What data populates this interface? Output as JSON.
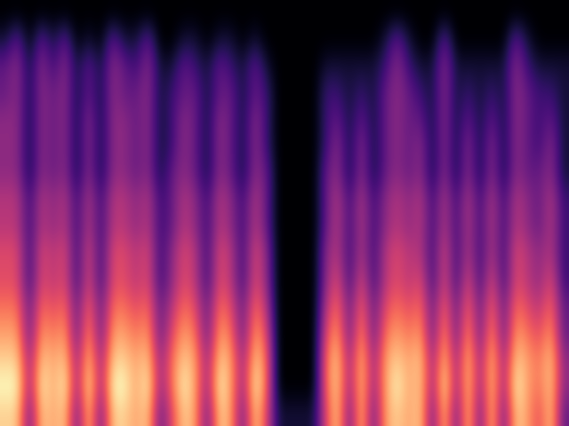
{
  "chart_data": {
    "type": "heatmap",
    "color": "magma",
    "tick_labels": false,
    "cells": [
      [
        0,
        0,
        0,
        0,
        0,
        0,
        0,
        0,
        0,
        0,
        0,
        0,
        0,
        0,
        0,
        0,
        0,
        0,
        0,
        0,
        0,
        0,
        0,
        0,
        0,
        0,
        0,
        0,
        0,
        0,
        0,
        0,
        0,
        0,
        0,
        0,
        0,
        0,
        0,
        0,
        0,
        0,
        0,
        0,
        0,
        0,
        0,
        0
      ],
      [
        1,
        3,
        0,
        3,
        1,
        3,
        0,
        1,
        0,
        3,
        1,
        1,
        3,
        0,
        0,
        1,
        1,
        0,
        1,
        1,
        0,
        1,
        0,
        0,
        0,
        0,
        0,
        0,
        0,
        0,
        0,
        0,
        1,
        3,
        1,
        0,
        0,
        3,
        0,
        0,
        0,
        0,
        0,
        3,
        1,
        0,
        0,
        0
      ],
      [
        3,
        4,
        1,
        4,
        2,
        4,
        1,
        3,
        1,
        4,
        3,
        2,
        4,
        1,
        1,
        3,
        2,
        1,
        3,
        2,
        1,
        3,
        1,
        0,
        0,
        0,
        0,
        1,
        1,
        1,
        1,
        1,
        2,
        4,
        2,
        1,
        1,
        4,
        1,
        1,
        1,
        1,
        1,
        4,
        2,
        1,
        1,
        1
      ],
      [
        3,
        4,
        1,
        4,
        3,
        4,
        1,
        3,
        1,
        4,
        3,
        3,
        4,
        1,
        2,
        3,
        3,
        1,
        3,
        3,
        1,
        3,
        2,
        0,
        0,
        0,
        0,
        2,
        2,
        1,
        2,
        1,
        3,
        4,
        3,
        2,
        1,
        4,
        1,
        2,
        1,
        2,
        1,
        4,
        3,
        2,
        2,
        1
      ],
      [
        4,
        4,
        1,
        4,
        3,
        4,
        1,
        4,
        1,
        4,
        4,
        3,
        4,
        1,
        2,
        4,
        3,
        1,
        4,
        3,
        1,
        4,
        2,
        0,
        0,
        0,
        0,
        2,
        3,
        1,
        3,
        1,
        3,
        4,
        3,
        3,
        1,
        4,
        1,
        3,
        1,
        3,
        1,
        4,
        3,
        2,
        3,
        1
      ],
      [
        4,
        4,
        1,
        4,
        3,
        4,
        1,
        4,
        1,
        4,
        4,
        3,
        4,
        1,
        2,
        4,
        3,
        1,
        4,
        3,
        1,
        4,
        2,
        0,
        0,
        0,
        0,
        2,
        4,
        1,
        4,
        1,
        3,
        4,
        3,
        4,
        1,
        4,
        1,
        4,
        1,
        4,
        1,
        4,
        3,
        2,
        4,
        1
      ],
      [
        4,
        4,
        1,
        4,
        3,
        4,
        1,
        4,
        1,
        4,
        4,
        3,
        4,
        1,
        3,
        4,
        3,
        1,
        4,
        3,
        1,
        4,
        3,
        0,
        0,
        0,
        0,
        3,
        4,
        1,
        4,
        1,
        3,
        4,
        3,
        4,
        1,
        4,
        1,
        4,
        1,
        4,
        1,
        4,
        3,
        3,
        4,
        1
      ],
      [
        5,
        5,
        2,
        5,
        4,
        5,
        2,
        5,
        2,
        5,
        5,
        4,
        5,
        2,
        3,
        5,
        4,
        2,
        5,
        4,
        2,
        5,
        3,
        0,
        0,
        0,
        0,
        3,
        5,
        2,
        5,
        2,
        4,
        5,
        4,
        5,
        2,
        5,
        2,
        5,
        2,
        5,
        2,
        5,
        4,
        3,
        5,
        2
      ],
      [
        5,
        5,
        2,
        5,
        4,
        5,
        2,
        5,
        2,
        5,
        5,
        4,
        5,
        2,
        3,
        5,
        4,
        2,
        5,
        4,
        2,
        5,
        3,
        0,
        0,
        0,
        0,
        3,
        5,
        2,
        5,
        2,
        4,
        5,
        4,
        5,
        2,
        5,
        2,
        5,
        2,
        5,
        2,
        5,
        4,
        3,
        5,
        2
      ],
      [
        6,
        6,
        2,
        6,
        5,
        6,
        2,
        6,
        2,
        6,
        6,
        5,
        6,
        2,
        4,
        6,
        5,
        2,
        6,
        5,
        2,
        6,
        4,
        0,
        0,
        0,
        0,
        4,
        5,
        2,
        5,
        2,
        5,
        6,
        5,
        5,
        2,
        6,
        2,
        5,
        2,
        5,
        2,
        6,
        5,
        4,
        5,
        2
      ],
      [
        6,
        6,
        2,
        6,
        5,
        6,
        2,
        6,
        2,
        6,
        6,
        5,
        6,
        2,
        4,
        6,
        5,
        2,
        6,
        5,
        2,
        6,
        4,
        0,
        0,
        0,
        0,
        4,
        6,
        2,
        6,
        2,
        5,
        6,
        5,
        6,
        2,
        6,
        2,
        6,
        2,
        6,
        2,
        6,
        5,
        4,
        6,
        2
      ],
      [
        7,
        7,
        3,
        7,
        6,
        7,
        3,
        7,
        3,
        7,
        7,
        6,
        7,
        3,
        5,
        7,
        6,
        3,
        7,
        6,
        3,
        7,
        5,
        0,
        0,
        0,
        0,
        5,
        7,
        3,
        7,
        3,
        6,
        7,
        6,
        7,
        3,
        7,
        3,
        7,
        3,
        7,
        3,
        7,
        6,
        5,
        7,
        3
      ],
      [
        8,
        8,
        3,
        8,
        7,
        8,
        3,
        8,
        3,
        8,
        8,
        7,
        8,
        3,
        6,
        8,
        7,
        3,
        8,
        7,
        3,
        8,
        6,
        0,
        0,
        0,
        0,
        6,
        8,
        3,
        8,
        3,
        7,
        8,
        7,
        8,
        3,
        8,
        3,
        8,
        3,
        8,
        3,
        8,
        7,
        6,
        8,
        3
      ],
      [
        9,
        9,
        4,
        9,
        8,
        9,
        4,
        9,
        4,
        9,
        9,
        8,
        9,
        4,
        7,
        9,
        8,
        4,
        9,
        8,
        4,
        9,
        7,
        0,
        0,
        0,
        0,
        7,
        9,
        4,
        9,
        4,
        8,
        9,
        8,
        9,
        4,
        9,
        4,
        9,
        4,
        9,
        4,
        9,
        8,
        7,
        9,
        4
      ],
      [
        10,
        10,
        4,
        10,
        8,
        10,
        4,
        10,
        4,
        10,
        10,
        8,
        10,
        4,
        7,
        10,
        8,
        4,
        10,
        8,
        4,
        10,
        7,
        0,
        0,
        0,
        0,
        7,
        9,
        4,
        9,
        4,
        8,
        10,
        8,
        9,
        4,
        10,
        4,
        9,
        4,
        9,
        4,
        10,
        8,
        7,
        9,
        4
      ],
      [
        9,
        9,
        3,
        9,
        8,
        9,
        3,
        9,
        3,
        9,
        9,
        8,
        9,
        3,
        6,
        9,
        8,
        3,
        9,
        8,
        3,
        9,
        6,
        1,
        1,
        1,
        1,
        6,
        9,
        3,
        9,
        3,
        8,
        9,
        8,
        9,
        3,
        9,
        3,
        9,
        3,
        9,
        3,
        9,
        8,
        6,
        9,
        3
      ]
    ]
  }
}
